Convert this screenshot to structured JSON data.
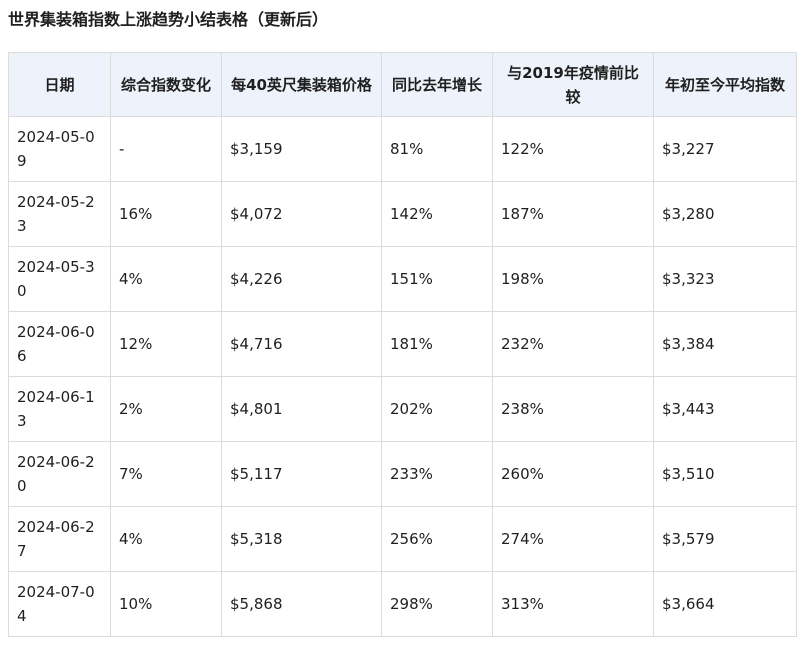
{
  "title": "世界集装箱指数上涨趋势小结表格（更新后）",
  "table": {
    "headers": [
      "日期",
      "综合指数变化",
      "每40英尺集装箱价格",
      "同比去年增长",
      "与2019年疫情前比较",
      "年初至今平均指数"
    ],
    "rows": [
      [
        "2024-05-09",
        "-",
        "$3,159",
        "81%",
        "122%",
        "$3,227"
      ],
      [
        "2024-05-23",
        "16%",
        "$4,072",
        "142%",
        "187%",
        "$3,280"
      ],
      [
        "2024-05-30",
        "4%",
        "$4,226",
        "151%",
        "198%",
        "$3,323"
      ],
      [
        "2024-06-06",
        "12%",
        "$4,716",
        "181%",
        "232%",
        "$3,384"
      ],
      [
        "2024-06-13",
        "2%",
        "$4,801",
        "202%",
        "238%",
        "$3,443"
      ],
      [
        "2024-06-20",
        "7%",
        "$5,117",
        "233%",
        "260%",
        "$3,510"
      ],
      [
        "2024-06-27",
        "4%",
        "$5,318",
        "256%",
        "274%",
        "$3,579"
      ],
      [
        "2024-07-04",
        "10%",
        "$5,868",
        "298%",
        "313%",
        "$3,664"
      ]
    ]
  }
}
